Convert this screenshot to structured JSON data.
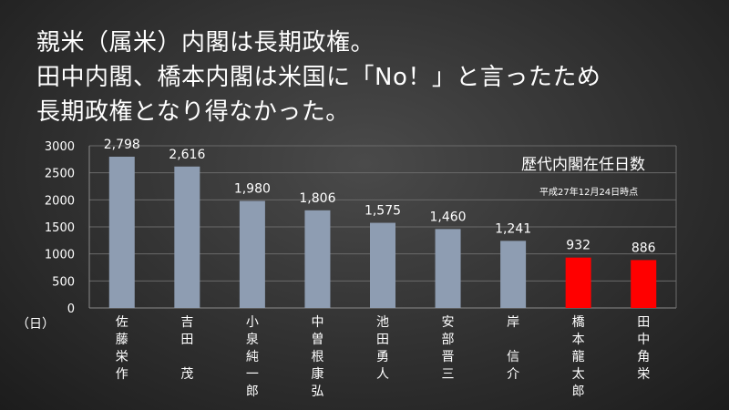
{
  "headline": {
    "line1": "親米（属米）内閣は長期政権。",
    "line2": "田中内閣、橋本内閣は米国に「No！」と言ったため",
    "line3": "長期政権となり得なかった。"
  },
  "chart_data": {
    "type": "bar",
    "title": "歴代内閣在任日数",
    "subtitle": "平成27年12月24日時点",
    "ylabel": "（日）",
    "ylim": [
      0,
      3000
    ],
    "yticks": [
      0,
      500,
      1000,
      1500,
      2000,
      2500,
      3000
    ],
    "grid": true,
    "categories": [
      "佐藤栄作",
      "吉田　茂",
      "小泉純一郎",
      "中曽根康弘",
      "池田勇人",
      "安部晋三",
      "岸　信介",
      "橋本龍太郎",
      "田中角栄"
    ],
    "values": [
      2798,
      2616,
      1980,
      1806,
      1575,
      1460,
      1241,
      932,
      886
    ],
    "value_labels": [
      "2,798",
      "2,616",
      "1,980",
      "1,806",
      "1,575",
      "1,460",
      "1,241",
      "932",
      "886"
    ],
    "bar_colors": [
      "#8e9db2",
      "#8e9db2",
      "#8e9db2",
      "#8e9db2",
      "#8e9db2",
      "#8e9db2",
      "#8e9db2",
      "#ff0000",
      "#ff0000"
    ]
  }
}
